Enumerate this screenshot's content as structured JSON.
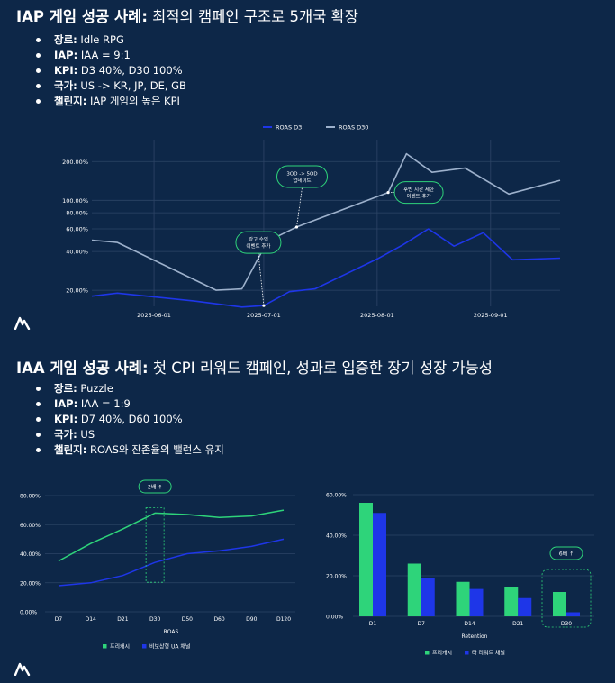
{
  "section1": {
    "title_bold": "IAP 게임 성공 사례:",
    "title_rest": " 최적의 캠페인 구조로 5개국 확장",
    "bullets": [
      {
        "label": "장르:",
        "value": " Idle RPG"
      },
      {
        "label": "IAP:",
        "value": " IAA = 9:1"
      },
      {
        "label": "KPI:",
        "value": " D3 40%, D30 100%"
      },
      {
        "label": "국가:",
        "value": " US -> KR, JP, DE, GB"
      },
      {
        "label": "챌린지:",
        "value": " IAP 게임의 높은 KPI"
      }
    ]
  },
  "section2": {
    "title_bold": "IAA 게임 성공 사례:",
    "title_rest": " 첫 CPI 리워드 캠페인, 성과로 입증한 장기 성장 가능성",
    "bullets": [
      {
        "label": "장르:",
        "value": " Puzzle"
      },
      {
        "label": "IAP:",
        "value": "  IAA = 1:9"
      },
      {
        "label": "KPI:",
        "value": "  D7 40%, D60 100%"
      },
      {
        "label": "국가:",
        "value": "  US"
      },
      {
        "label": "챌린지:",
        "value": " ROAS와 잔존율의 밸런스 유지"
      }
    ]
  },
  "chart_data": [
    {
      "type": "line",
      "title": "",
      "yscale": "log",
      "ylim": [
        15,
        260
      ],
      "ytick_values": [
        20,
        40,
        60,
        80,
        100,
        200
      ],
      "ytick_labels": [
        "20.00%",
        "40.00%",
        "60.00%",
        "80.00%",
        "100.00%",
        "200.00%"
      ],
      "xlim": [
        "2025-05-15",
        "2025-09-20"
      ],
      "xtick_values": [
        "2025-06-01",
        "2025-07-01",
        "2025-08-01",
        "2025-09-01"
      ],
      "xtick_labels": [
        "2025-06-01",
        "2025-07-01",
        "2025-08-01",
        "2025-09-01"
      ],
      "grid": true,
      "legend_position": "top-center",
      "series": [
        {
          "name": "ROAS D3",
          "color": "#1e36e8",
          "points": [
            [
              "2025-05-15",
              18
            ],
            [
              "2025-05-22",
              19
            ],
            [
              "2025-06-12",
              16.5
            ],
            [
              "2025-06-25",
              14.8
            ],
            [
              "2025-07-01",
              15.2
            ],
            [
              "2025-07-08",
              19.5
            ],
            [
              "2025-07-15",
              20.5
            ],
            [
              "2025-08-01",
              35
            ],
            [
              "2025-08-08",
              45
            ],
            [
              "2025-08-15",
              60
            ],
            [
              "2025-08-22",
              44
            ],
            [
              "2025-08-30",
              56
            ],
            [
              "2025-09-07",
              34.5
            ],
            [
              "2025-09-20",
              35.5
            ]
          ]
        },
        {
          "name": "ROAS D30",
          "color": "#9db1cc",
          "points": [
            [
              "2025-05-15",
              49
            ],
            [
              "2025-05-22",
              47
            ],
            [
              "2025-06-18",
              20
            ],
            [
              "2025-06-25",
              20.5
            ],
            [
              "2025-07-02",
              48
            ],
            [
              "2025-07-10",
              62
            ],
            [
              "2025-08-04",
              115
            ],
            [
              "2025-08-09",
              230
            ],
            [
              "2025-08-16",
              165
            ],
            [
              "2025-08-25",
              178
            ],
            [
              "2025-09-06",
              112
            ],
            [
              "2025-09-20",
              143
            ]
          ]
        }
      ],
      "annotations": [
        {
          "text": [
            "광고 수익",
            "이벤트 추가"
          ],
          "date": "2025-07-01",
          "value": 15.2
        },
        {
          "text": [
            "3OD -> 5OD",
            "업데이트"
          ],
          "date": "2025-07-10",
          "value": 62
        },
        {
          "text": [
            "후반 시간 제한",
            "이벤트 추가"
          ],
          "date": "2025-08-04",
          "value": 115
        }
      ]
    },
    {
      "type": "line",
      "title": "",
      "xlabel": "ROAS",
      "categories": [
        "D7",
        "D14",
        "D21",
        "D30",
        "D50",
        "D60",
        "D90",
        "D120"
      ],
      "ylim": [
        0,
        80
      ],
      "ytick_labels": [
        "0.00%",
        "20.00%",
        "40.00%",
        "60.00%",
        "80.00%"
      ],
      "grid": true,
      "legend_position": "bottom-center",
      "series": [
        {
          "name": "프리캐시",
          "color": "#2ed47a",
          "values": [
            35,
            47,
            57,
            68,
            67,
            65,
            66,
            70
          ]
        },
        {
          "name": "비보상형 UA 채널",
          "color": "#1e36e8",
          "values": [
            18,
            20,
            25,
            34,
            40,
            42,
            45,
            50
          ]
        }
      ],
      "annotation": {
        "text": "2배 ↑",
        "category": "D30"
      }
    },
    {
      "type": "bar",
      "title": "",
      "xlabel": "Retention",
      "categories": [
        "D1",
        "D7",
        "D14",
        "D21",
        "D30"
      ],
      "ylim": [
        0,
        60
      ],
      "ytick_labels": [
        "0.00%",
        "20.00%",
        "40.00%",
        "60.00%"
      ],
      "grid": true,
      "legend_position": "bottom-center",
      "series": [
        {
          "name": "프리캐시",
          "color": "#2ed47a",
          "values": [
            56,
            26,
            17,
            14.5,
            12
          ]
        },
        {
          "name": "타 리워드 채널",
          "color": "#1e36e8",
          "values": [
            51,
            19,
            13.5,
            9,
            2
          ]
        }
      ],
      "annotation": {
        "text": "6배 ↑",
        "category": "D30"
      }
    }
  ],
  "colors": {
    "background": "#0d2748",
    "callout_border": "#2ed47a",
    "grid": "#2d4566"
  },
  "logo_icon": "brand-logo-icon"
}
